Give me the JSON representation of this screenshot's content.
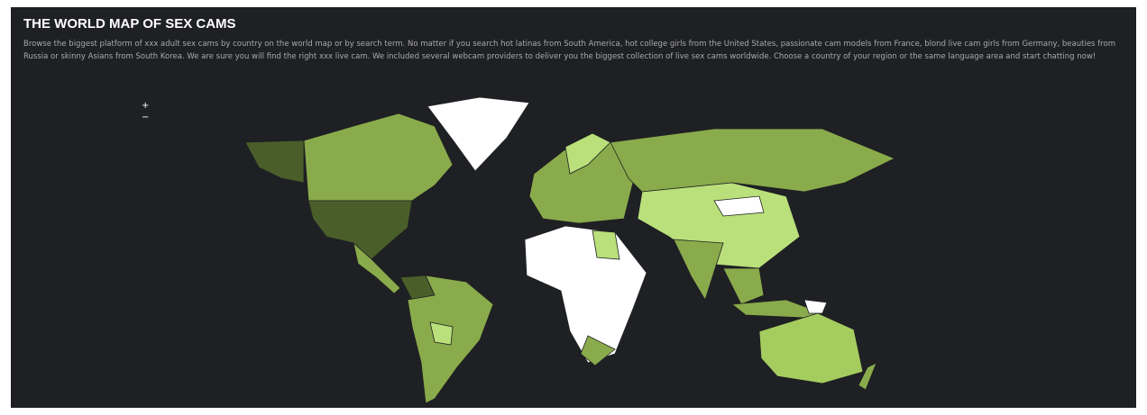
{
  "header": {
    "title": "THE WORLD MAP OF SEX CAMS",
    "description": "Browse the biggest platform of xxx adult sex cams by country on the world map or by search term. No matter if you search hot latinas from South America, hot college girls from the United States, passionate cam models from France, blond live cam girls from Germany, beauties from Russia or skinny Asians from South Korea. We are sure you will find the right xxx live cam. We included several webcam providers to deliver you the biggest collection of live sex cams worldwide. Choose a country of your region or the same language area and start chatting now!"
  },
  "controls": {
    "zoom_in": "+",
    "zoom_out": "−"
  }
}
